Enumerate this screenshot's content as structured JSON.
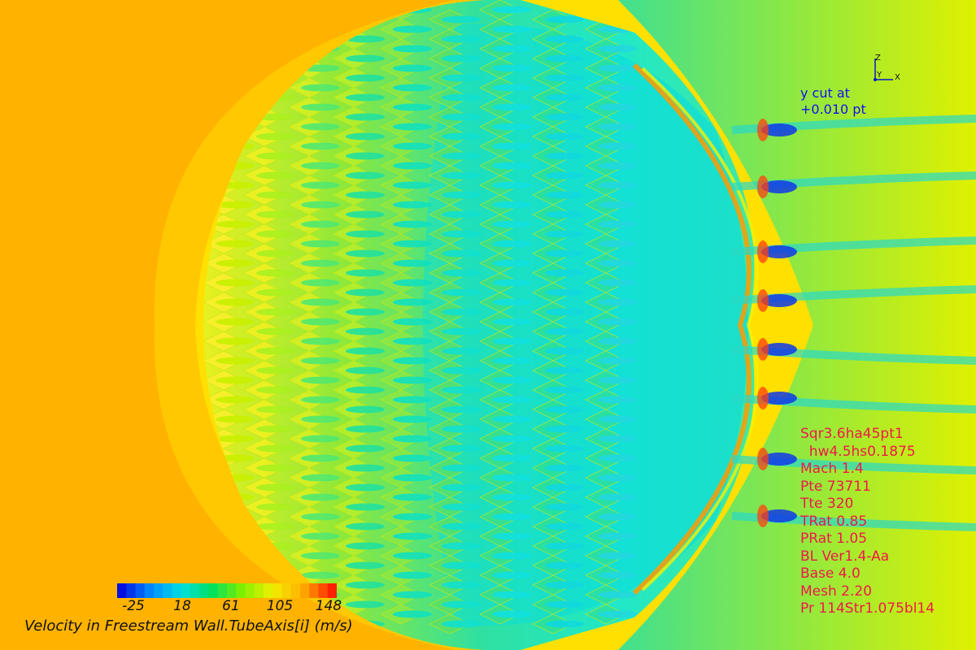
{
  "figure": {
    "variable": "Velocity in Freestream Wall.TubeAxis[i] (m/s)",
    "colormap": [
      "#0010E0",
      "#0090FF",
      "#00E0E0",
      "#00E060",
      "#80F000",
      "#F0F000",
      "#FFB000",
      "#FF2000"
    ]
  },
  "colorbar": {
    "min": -25,
    "max": 148,
    "ticks": [
      "-25",
      "18",
      "61",
      "105",
      "148"
    ]
  },
  "axes_triad": {
    "z": "Z",
    "y": "Y",
    "x": "X"
  },
  "cut_label": {
    "line1": "y cut at",
    "line2": "+0.010 pt"
  },
  "params": [
    "Sqr3.6ha45pt1",
    "  hw4.5hs0.1875",
    "Mach 1.4",
    "Pte 73711",
    "Tte 320",
    "TRat 0.85",
    "PRat 1.05",
    "BL Ver1.4-Aa",
    "Base 4.0",
    "Mesh 2.20",
    "Pr 114Str1.075bl14"
  ],
  "colors": {
    "params_text": "#F01848",
    "cut_text": "#1010F0",
    "background": "#FFB300"
  }
}
